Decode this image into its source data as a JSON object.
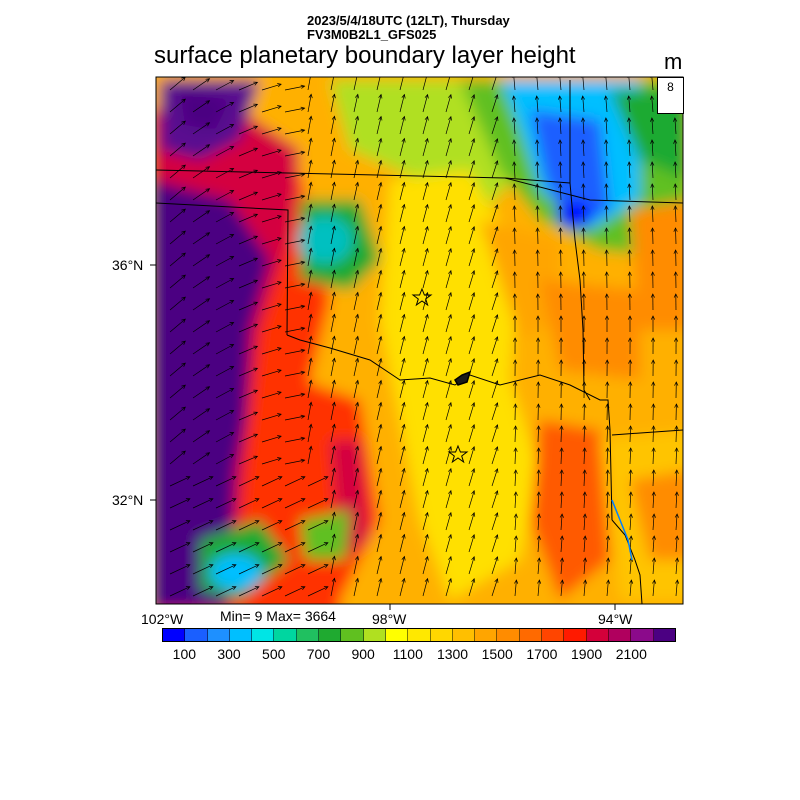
{
  "header": {
    "line1": "2023/5/4/18UTC (12LT), Thursday",
    "line2": "FV3M0B2L1_GFS025",
    "title": "surface planetary boundary layer height",
    "units": "m"
  },
  "reference_vector": {
    "value": "8"
  },
  "stats": {
    "text": "Min= 9 Max= 3664"
  },
  "axes": {
    "lon_labels": [
      "102°W",
      "98°W",
      "94°W"
    ],
    "lat_labels": [
      "36°N",
      "32°N"
    ]
  },
  "colorbar": {
    "colors": [
      "#0000ff",
      "#1a5fff",
      "#1e90ff",
      "#00bfff",
      "#00e5e5",
      "#00d6a0",
      "#20c060",
      "#1faa30",
      "#60c020",
      "#b0e020",
      "#ffff00",
      "#ffe800",
      "#ffd700",
      "#ffbf00",
      "#ffa500",
      "#ff8c00",
      "#ff6a00",
      "#ff4500",
      "#ff1a00",
      "#d4003a",
      "#b0005e",
      "#8b0a8b",
      "#4b0082"
    ],
    "labels": [
      "100",
      "300",
      "500",
      "700",
      "900",
      "1100",
      "1300",
      "1500",
      "1700",
      "1900",
      "2100"
    ]
  },
  "markers": {
    "stars": 2
  }
}
